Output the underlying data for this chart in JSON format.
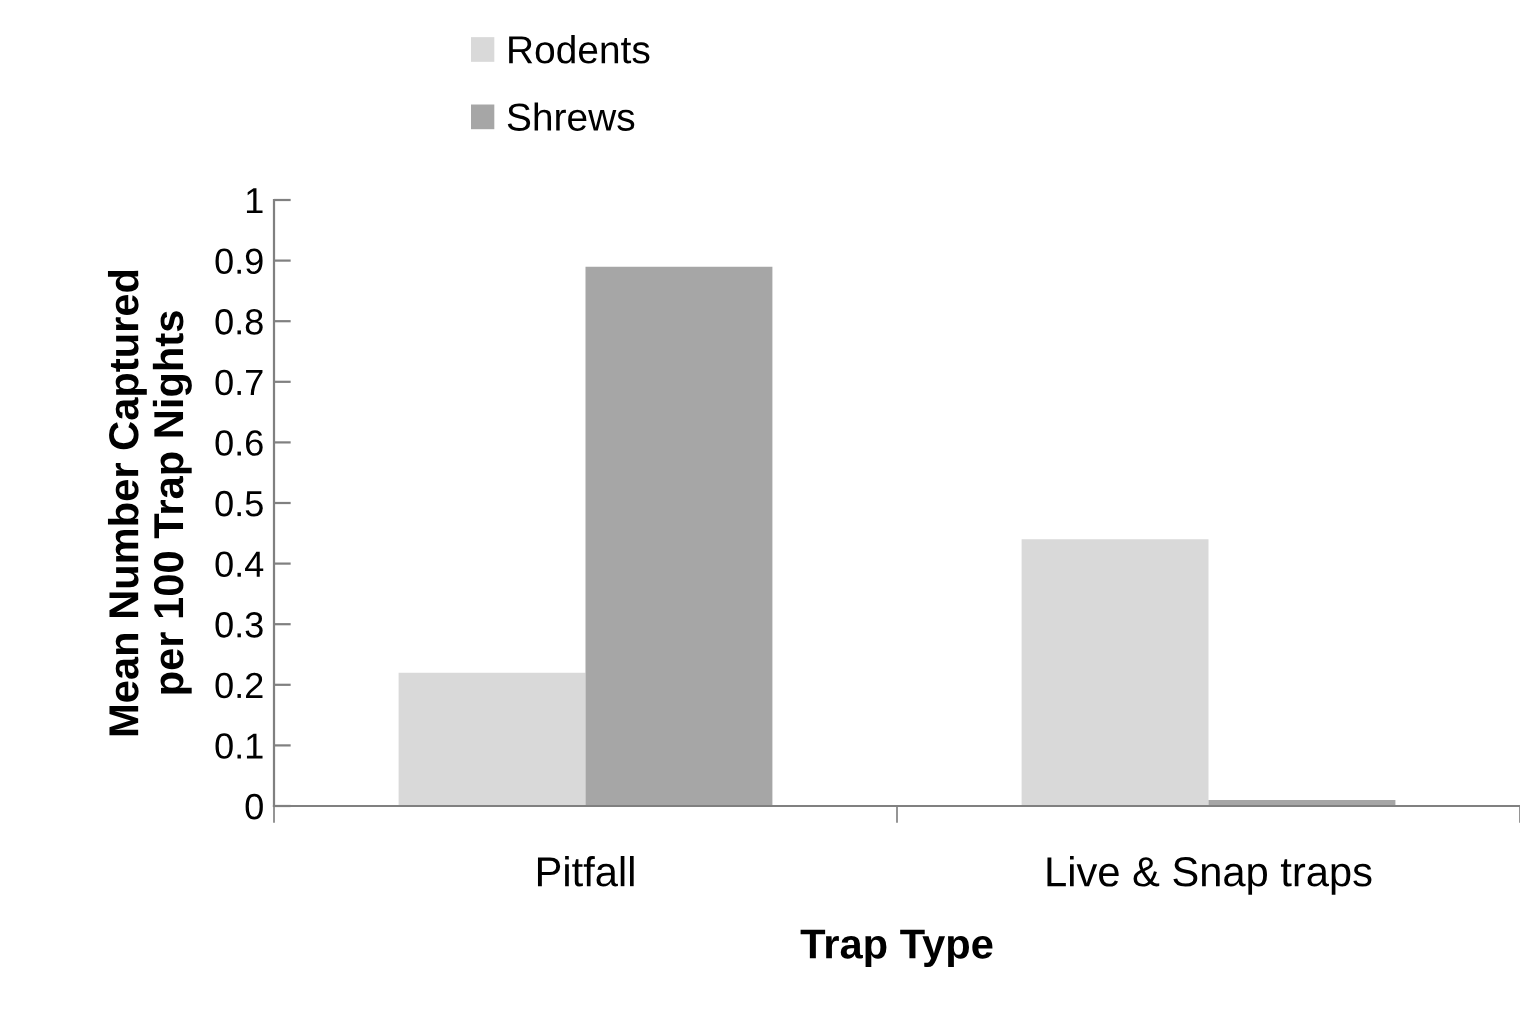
{
  "chart_data": {
    "type": "bar",
    "xlabel": "Trap Type",
    "ylabel": "Mean Number Captured\nper 100 Trap Nights",
    "categories": [
      "Pitfall",
      "Live & Snap traps"
    ],
    "series": [
      {
        "name": "Rodents",
        "color": "#d9d9d9",
        "values": [
          0.22,
          0.44
        ]
      },
      {
        "name": "Shrews",
        "color": "#a6a6a6",
        "values": [
          0.89,
          0.01
        ]
      }
    ],
    "ylim": [
      0,
      1
    ],
    "yticks": [
      0,
      0.1,
      0.2,
      0.3,
      0.4,
      0.5,
      0.6,
      0.7,
      0.8,
      0.9,
      1
    ],
    "grid": false,
    "legend": "top"
  }
}
